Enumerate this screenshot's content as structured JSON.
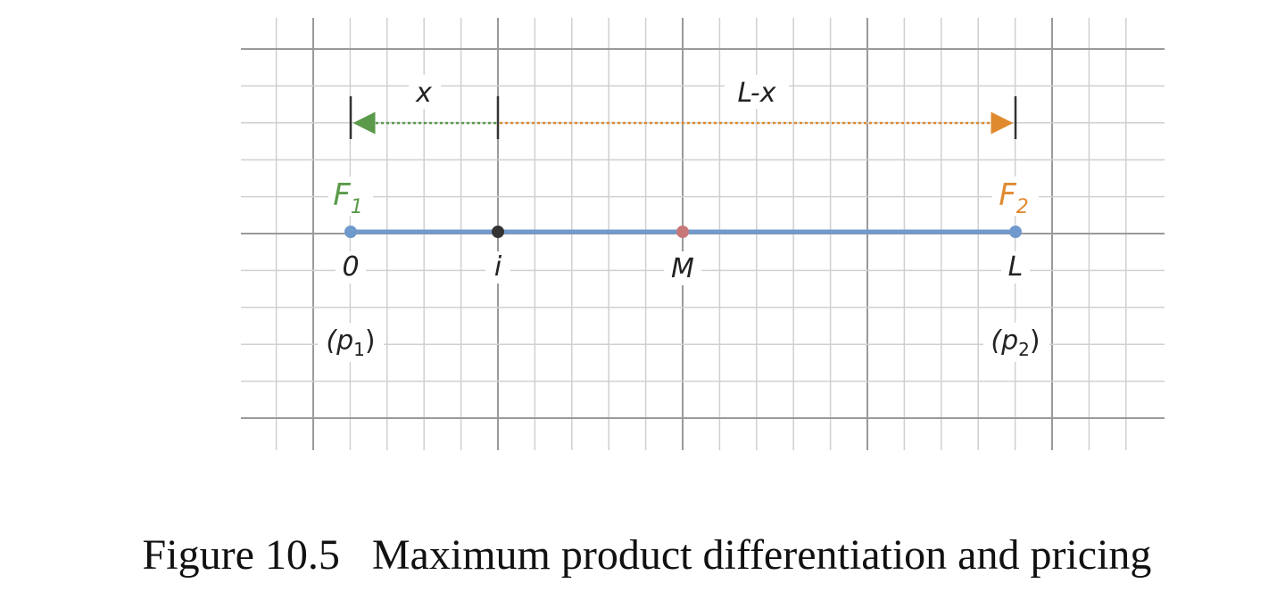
{
  "diagram": {
    "distances": [
      "x",
      "L-x"
    ],
    "firms": [
      {
        "name": "F",
        "sub": "1"
      },
      {
        "name": "F",
        "sub": "2"
      }
    ],
    "points": [
      "0",
      "i",
      "M",
      "L"
    ],
    "prices": [
      {
        "open": "(p",
        "sub": "1",
        "close": ")"
      },
      {
        "open": "(p",
        "sub": "2",
        "close": ")"
      }
    ]
  },
  "caption": "Figure 10.5   Maximum product differentiation and pricing"
}
